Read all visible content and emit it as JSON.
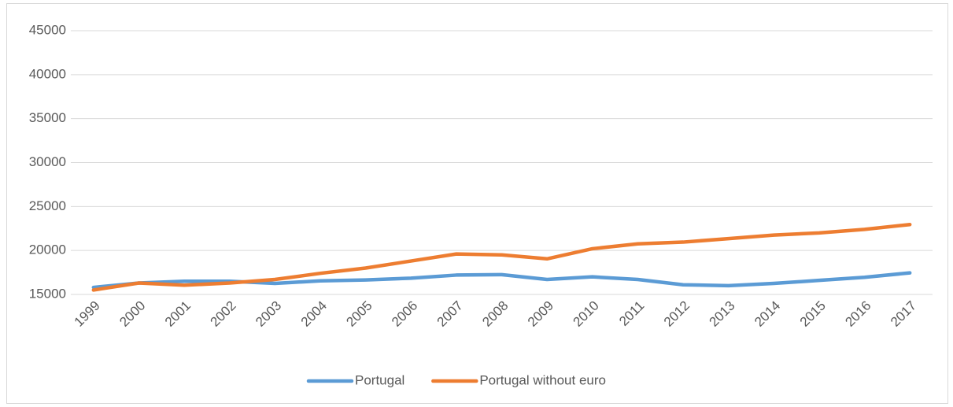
{
  "chart_data": {
    "type": "line",
    "categories": [
      "1999",
      "2000",
      "2001",
      "2002",
      "2003",
      "2004",
      "2005",
      "2006",
      "2007",
      "2008",
      "2009",
      "2010",
      "2011",
      "2012",
      "2013",
      "2014",
      "2015",
      "2016",
      "2017"
    ],
    "series": [
      {
        "name": "Portugal",
        "color": "#5b9bd5",
        "values": [
          15800,
          16300,
          16500,
          16500,
          16250,
          16550,
          16650,
          16850,
          17200,
          17250,
          16700,
          17000,
          16700,
          16100,
          16000,
          16250,
          16600,
          16950,
          17450
        ]
      },
      {
        "name": "Portugal without euro",
        "color": "#ed7d31",
        "values": [
          15500,
          16300,
          16050,
          16300,
          16700,
          17400,
          18000,
          18800,
          19600,
          19500,
          19050,
          20200,
          20750,
          20950,
          21350,
          21750,
          22000,
          22400,
          22950
        ]
      }
    ],
    "ylim": [
      15000,
      45000
    ],
    "yticks": [
      15000,
      20000,
      25000,
      30000,
      35000,
      40000,
      45000
    ],
    "grid": true,
    "legend": "bottom"
  }
}
